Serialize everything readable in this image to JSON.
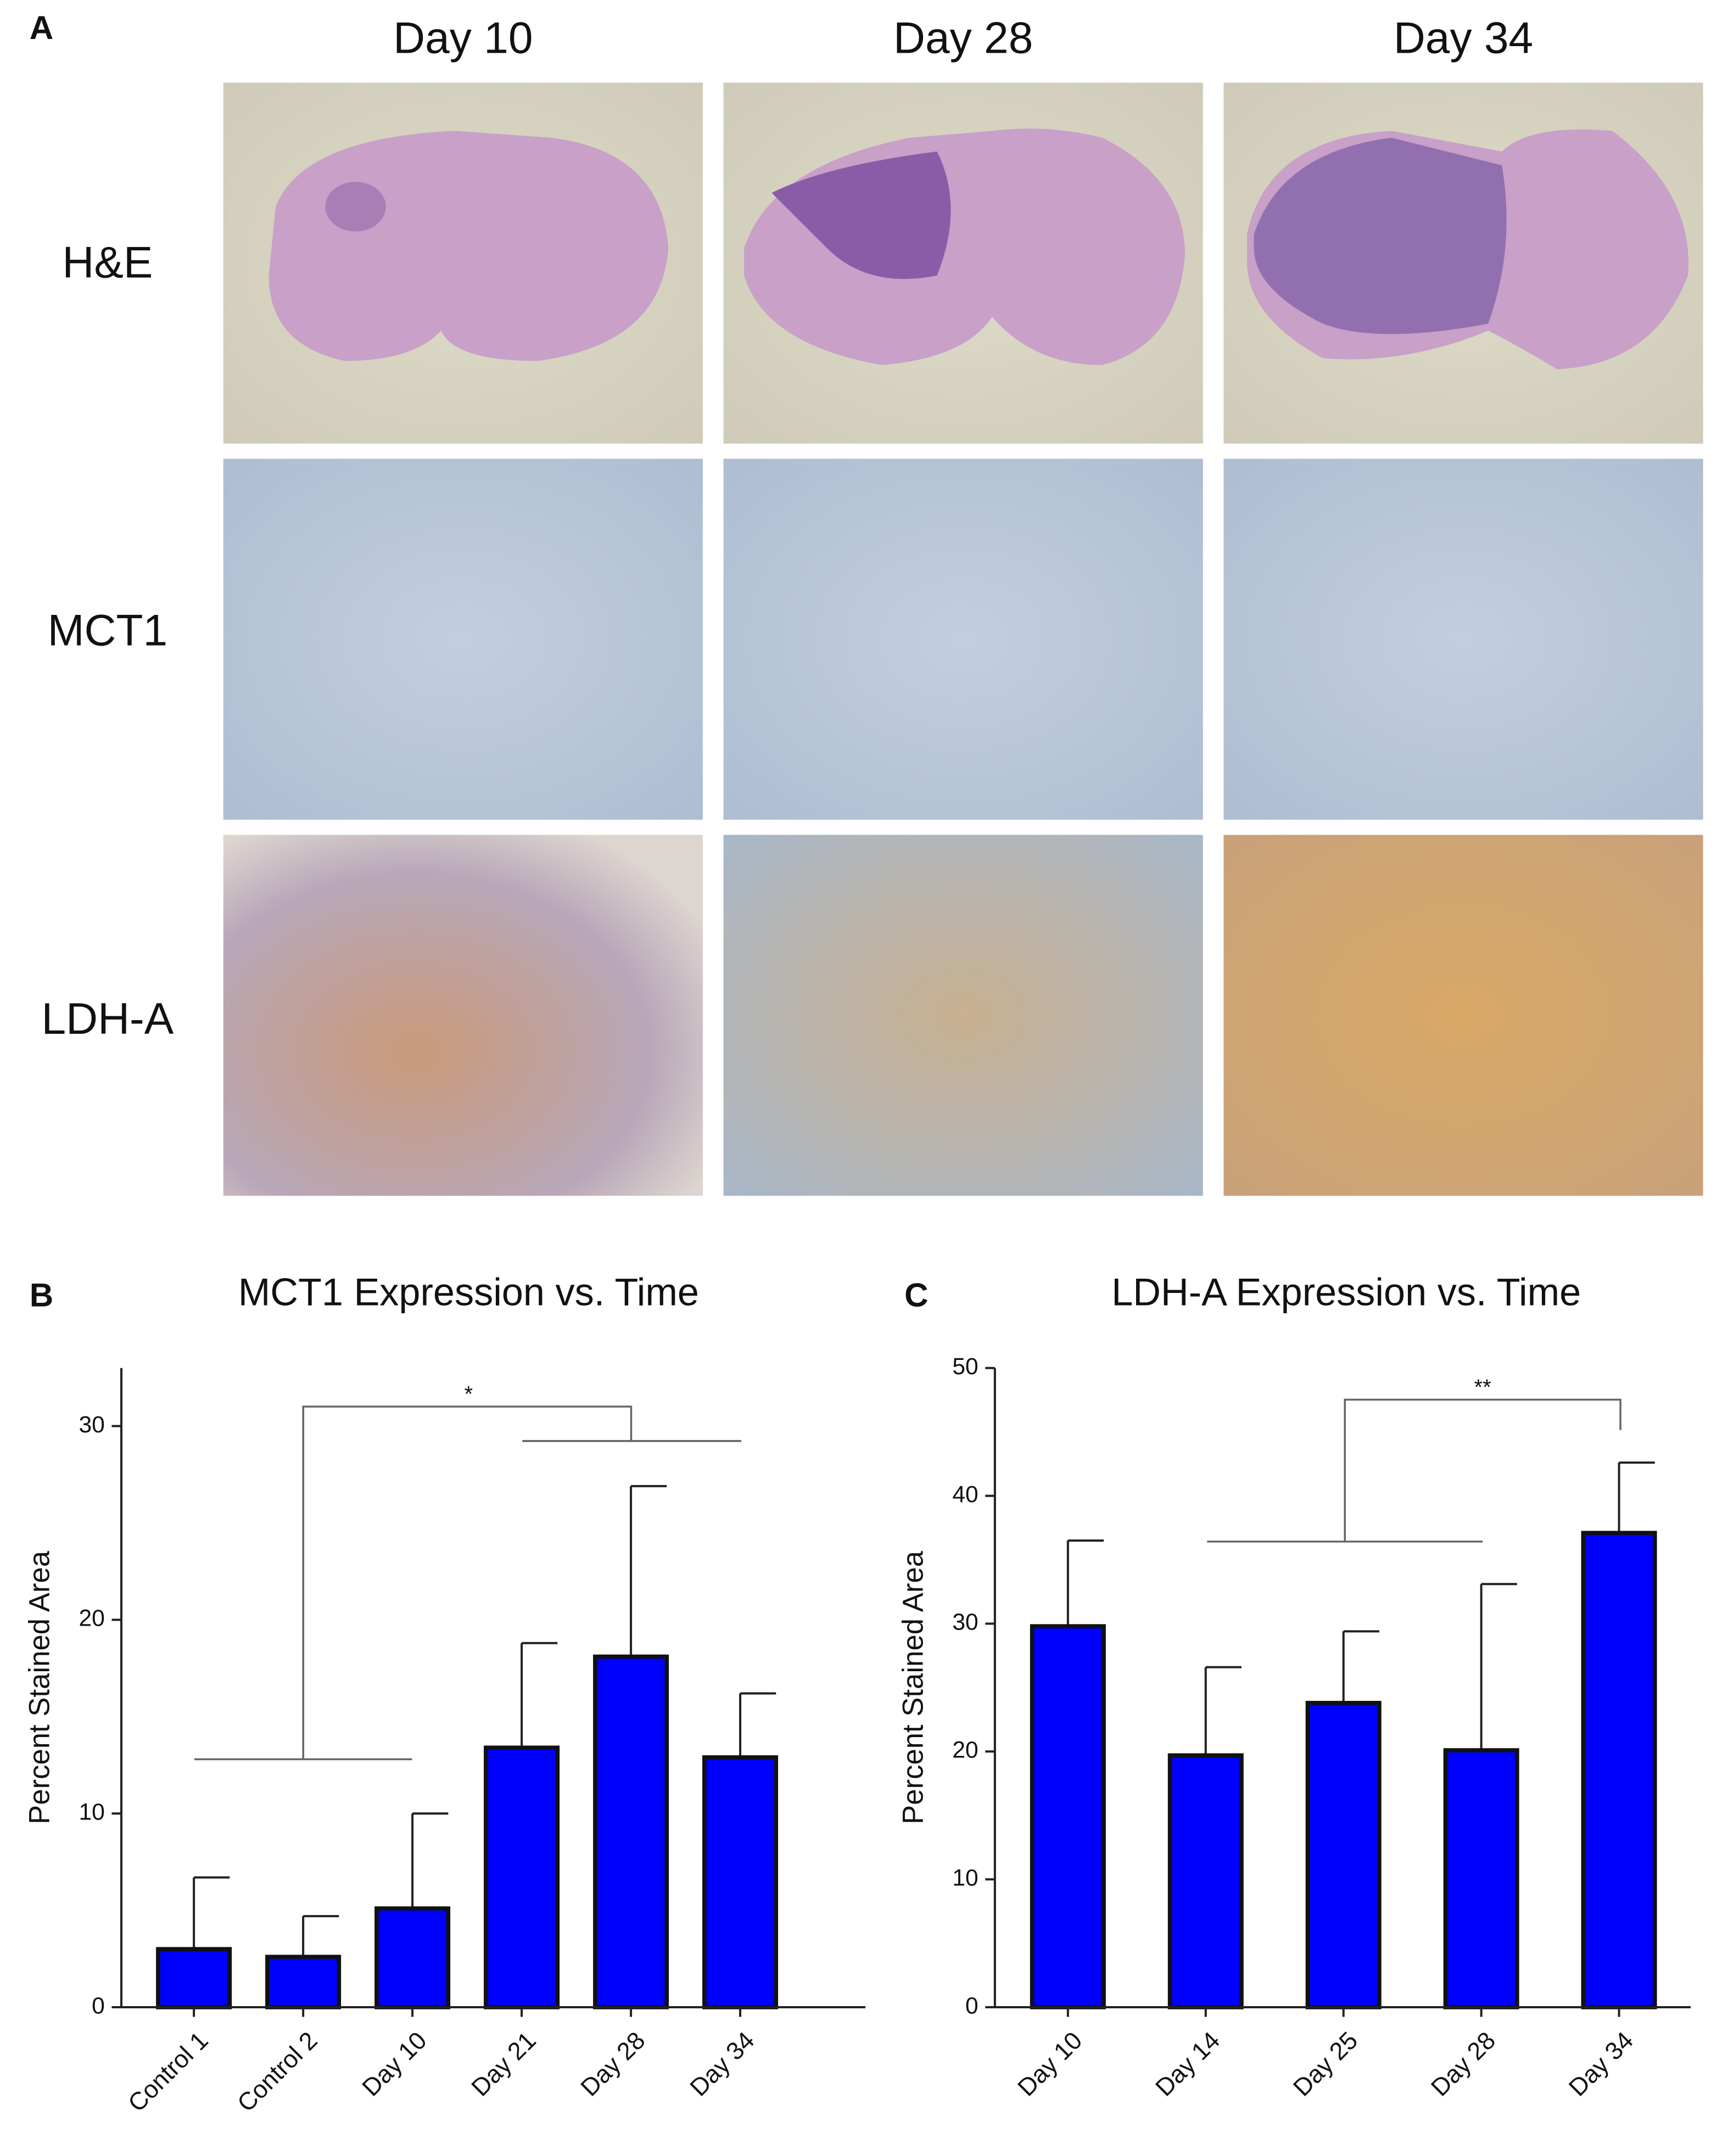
{
  "panel_a": {
    "label": "A",
    "columns": [
      "Day 10",
      "Day 28",
      "Day 34"
    ],
    "rows": [
      "H&E",
      "MCT1",
      "LDH-A"
    ]
  },
  "chart_data": [
    {
      "type": "bar",
      "panel": "B",
      "title": "MCT1 Expression vs. Time",
      "ylabel": "Percent Stained Area",
      "categories": [
        "Control 1",
        "Control 2",
        "Day 10",
        "Day 21",
        "Day 28",
        "Day 34"
      ],
      "values": [
        3.0,
        2.6,
        5.1,
        13.4,
        18.1,
        12.9
      ],
      "errors": [
        3.7,
        2.1,
        4.9,
        5.4,
        8.8,
        3.3
      ],
      "color": "#0000ff",
      "ylim": [
        0,
        33
      ],
      "yticks": [
        0,
        10,
        20,
        30
      ],
      "annotation": "*"
    },
    {
      "type": "bar",
      "panel": "C",
      "title": "LDH-A Expression vs. Time",
      "ylabel": "Percent Stained Area",
      "categories": [
        "Day 10",
        "Day 14",
        "Day 25",
        "Day 28",
        "Day 34"
      ],
      "values": [
        29.8,
        19.7,
        23.8,
        20.1,
        37.1
      ],
      "errors": [
        6.7,
        6.9,
        5.6,
        13.0,
        5.5
      ],
      "color": "#0000ff",
      "ylim": [
        0,
        50
      ],
      "yticks": [
        0,
        10,
        20,
        30,
        40,
        50
      ],
      "annotation": "**"
    }
  ]
}
